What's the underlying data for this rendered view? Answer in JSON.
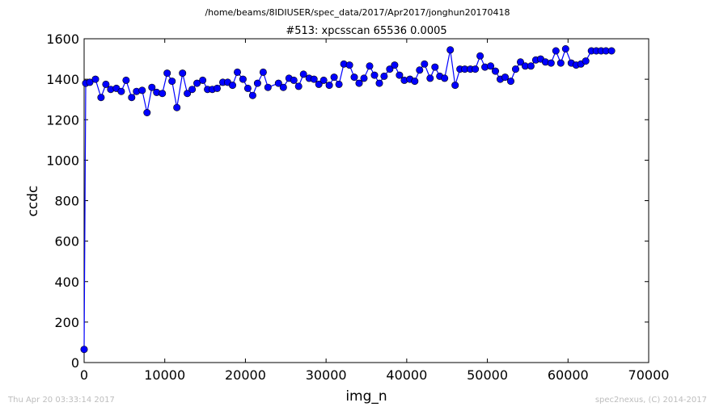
{
  "header": {
    "suptitle": "/home/beams/8IDIUSER/spec_data/2017/Apr2017/jonghun20170418"
  },
  "footer": {
    "timestamp": "Thu Apr 20 03:33:14 2017",
    "credit": "spec2nexus, (C) 2014-2017"
  },
  "chart_data": {
    "type": "line",
    "title": "#513: xpcsscan 65536 0.0005",
    "xlabel": "img_n",
    "ylabel": "ccdc",
    "xlim": [
      0,
      70000
    ],
    "ylim": [
      0,
      1600
    ],
    "xticks": [
      0,
      10000,
      20000,
      30000,
      40000,
      50000,
      60000,
      70000
    ],
    "yticks": [
      0,
      200,
      400,
      600,
      800,
      1000,
      1200,
      1400,
      1600
    ],
    "grid": false,
    "legend": false,
    "colors": {
      "series": "#0000ff",
      "axes": "#000000"
    },
    "series": [
      {
        "marker": "circle",
        "x": [
          0,
          200,
          700,
          1400,
          2100,
          2700,
          3300,
          4000,
          4600,
          5200,
          5900,
          6500,
          7200,
          7800,
          8400,
          9000,
          9700,
          10300,
          10900,
          11500,
          12200,
          12800,
          13400,
          14000,
          14700,
          15300,
          15900,
          16500,
          17200,
          17800,
          18400,
          19000,
          19700,
          20300,
          20900,
          21500,
          22200,
          22800,
          24100,
          24700,
          25400,
          26000,
          26600,
          27200,
          27900,
          28500,
          29100,
          29700,
          30400,
          31000,
          31600,
          32200,
          32900,
          33500,
          34100,
          34700,
          35400,
          36000,
          36600,
          37200,
          37900,
          38500,
          39100,
          39700,
          40400,
          41000,
          41600,
          42200,
          42900,
          43500,
          44100,
          44700,
          45400,
          46000,
          46600,
          47200,
          47900,
          48500,
          49100,
          49700,
          50400,
          51000,
          51600,
          52200,
          52900,
          53500,
          54100,
          54700,
          55400,
          56000,
          56600,
          57200,
          57900,
          58500,
          59100,
          59700,
          60400,
          61000,
          61600,
          62200,
          62900,
          63500,
          64100,
          64700,
          65400
        ],
        "y": [
          65,
          1380,
          1385,
          1400,
          1310,
          1375,
          1350,
          1355,
          1340,
          1395,
          1310,
          1340,
          1345,
          1235,
          1360,
          1335,
          1330,
          1430,
          1390,
          1260,
          1430,
          1330,
          1350,
          1380,
          1395,
          1350,
          1350,
          1355,
          1385,
          1385,
          1370,
          1435,
          1400,
          1355,
          1320,
          1380,
          1435,
          1360,
          1380,
          1360,
          1405,
          1395,
          1365,
          1425,
          1405,
          1400,
          1375,
          1395,
          1370,
          1410,
          1375,
          1475,
          1470,
          1410,
          1380,
          1405,
          1465,
          1420,
          1380,
          1415,
          1450,
          1470,
          1420,
          1395,
          1400,
          1390,
          1445,
          1475,
          1405,
          1460,
          1415,
          1405,
          1545,
          1370,
          1450,
          1450,
          1450,
          1450,
          1515,
          1460,
          1465,
          1440,
          1400,
          1410,
          1390,
          1450,
          1485,
          1465,
          1465,
          1495,
          1500,
          1485,
          1480,
          1540,
          1480,
          1550,
          1480,
          1470,
          1475,
          1490,
          1540,
          1540,
          1540,
          1540,
          1540
        ]
      }
    ]
  }
}
